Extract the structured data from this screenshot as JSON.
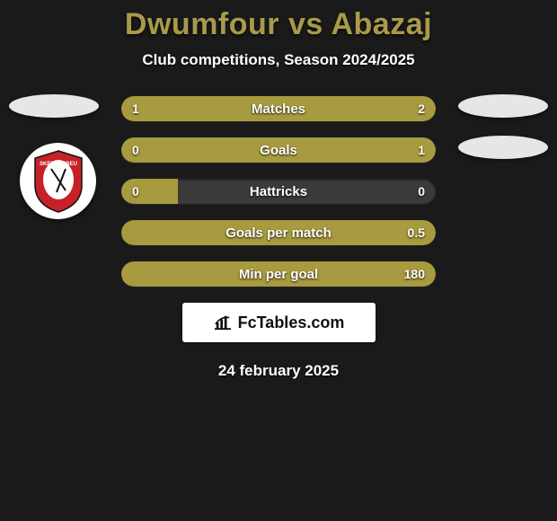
{
  "title": "Dwumfour vs Abazaj",
  "subtitle": "Club competitions, Season 2024/2025",
  "date": "24 february 2025",
  "logo": {
    "text": "FcTables.com"
  },
  "colors": {
    "title": "#a89a4a",
    "bar_fill": "#a89a3e",
    "bar_track": "#3a3a3a",
    "background": "#1a1a1a",
    "text": "#ffffff",
    "badge_bg": "#e6e6e6",
    "crest_red": "#c62127"
  },
  "bars": [
    {
      "label": "Matches",
      "left_value": "1",
      "right_value": "2",
      "left_pct": 33,
      "right_pct": 67
    },
    {
      "label": "Goals",
      "left_value": "0",
      "right_value": "1",
      "left_pct": 18,
      "right_pct": 82
    },
    {
      "label": "Hattricks",
      "left_value": "0",
      "right_value": "0",
      "left_pct": 18,
      "right_pct": 0
    },
    {
      "label": "Goals per match",
      "left_value": "",
      "right_value": "0.5",
      "left_pct": 0,
      "right_pct": 100
    },
    {
      "label": "Min per goal",
      "left_value": "",
      "right_value": "180",
      "left_pct": 0,
      "right_pct": 100
    }
  ]
}
